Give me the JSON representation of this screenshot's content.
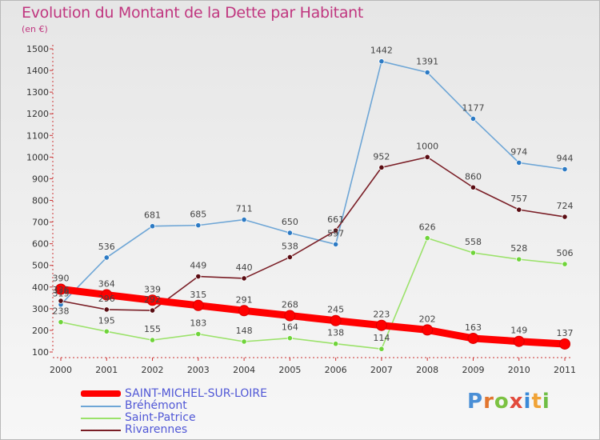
{
  "title": "Evolution du Montant de la Dette par Habitant",
  "subtitle": "(en €)",
  "logo": "Proxiti",
  "chart_data": {
    "type": "line",
    "title": "Evolution du Montant de la Dette par Habitant",
    "subtitle": "(en €)",
    "xlabel": "",
    "ylabel": "",
    "x": [
      "2000",
      "2001",
      "2002",
      "2003",
      "2004",
      "2005",
      "2006",
      "2007",
      "2008",
      "2009",
      "2010",
      "2011"
    ],
    "ylim": [
      100,
      1500
    ],
    "yticks": [
      100,
      200,
      300,
      400,
      500,
      600,
      700,
      800,
      900,
      1000,
      1100,
      1200,
      1300,
      1400,
      1500
    ],
    "grid": false,
    "legend": "bottom-left",
    "series": [
      {
        "name": "SAINT-MICHEL-SUR-LOIRE",
        "color": "#ff0000",
        "values": [
          390,
          364,
          339,
          315,
          291,
          268,
          245,
          223,
          202,
          163,
          149,
          137
        ]
      },
      {
        "name": "Bréhémont",
        "color": "#6ea6d6",
        "values": [
          319,
          536,
          681,
          685,
          711,
          650,
          597,
          1442,
          1391,
          1177,
          974,
          944
        ]
      },
      {
        "name": "Saint-Patrice",
        "color": "#9be26a",
        "values": [
          238,
          195,
          155,
          183,
          148,
          164,
          138,
          114,
          626,
          558,
          528,
          506
        ]
      },
      {
        "name": "Rivarennes",
        "color": "#7a1e26",
        "values": [
          336,
          296,
          292,
          449,
          440,
          538,
          661,
          952,
          1000,
          860,
          757,
          724
        ]
      }
    ]
  }
}
